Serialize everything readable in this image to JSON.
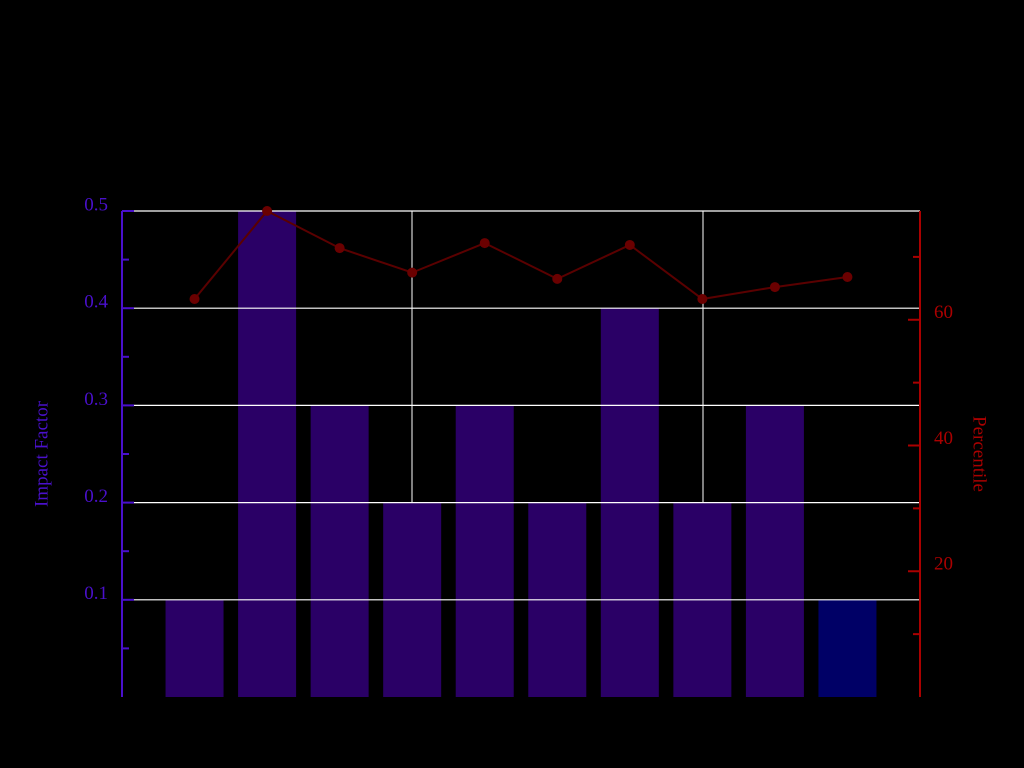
{
  "chart_data": {
    "type": "bar",
    "categories": [
      null,
      null,
      null,
      null,
      null,
      null,
      null,
      null,
      null,
      null
    ],
    "series": [
      {
        "name": "Impact Factor",
        "type": "bar",
        "colors": [
          "#2a0066",
          "#2a0066",
          "#2a0066",
          "#2a0066",
          "#2a0066",
          "#2a0066",
          "#2a0066",
          "#2a0066",
          "#2a0066",
          "#000066"
        ],
        "values": [
          0.1,
          0.5,
          0.3,
          0.2,
          0.3,
          0.2,
          0.4,
          0.2,
          0.3,
          0.1
        ]
      },
      {
        "name": "Percentile",
        "type": "line",
        "axis": "y2",
        "color": "#5a0000",
        "values": [
          63.3,
          77.3,
          71.4,
          67.5,
          72.2,
          66.5,
          71.9,
          63.3,
          65.2,
          66.8
        ]
      }
    ],
    "ylabel": "Impact Factor",
    "y2label": "Percentile",
    "ylim": [
      0,
      0.5
    ],
    "yticks": [
      0.1,
      0.2,
      0.3,
      0.4,
      0.5
    ],
    "yminorticks": [
      0.05,
      0.15,
      0.25,
      0.35,
      0.45
    ],
    "y2lim": [
      0,
      77.3
    ],
    "y2ticks": [
      20,
      40,
      60
    ],
    "y2minorticks": [
      10,
      30,
      50,
      70
    ],
    "ycolor": "#4a10cc",
    "y2color": "#aa0000",
    "grid": true
  }
}
